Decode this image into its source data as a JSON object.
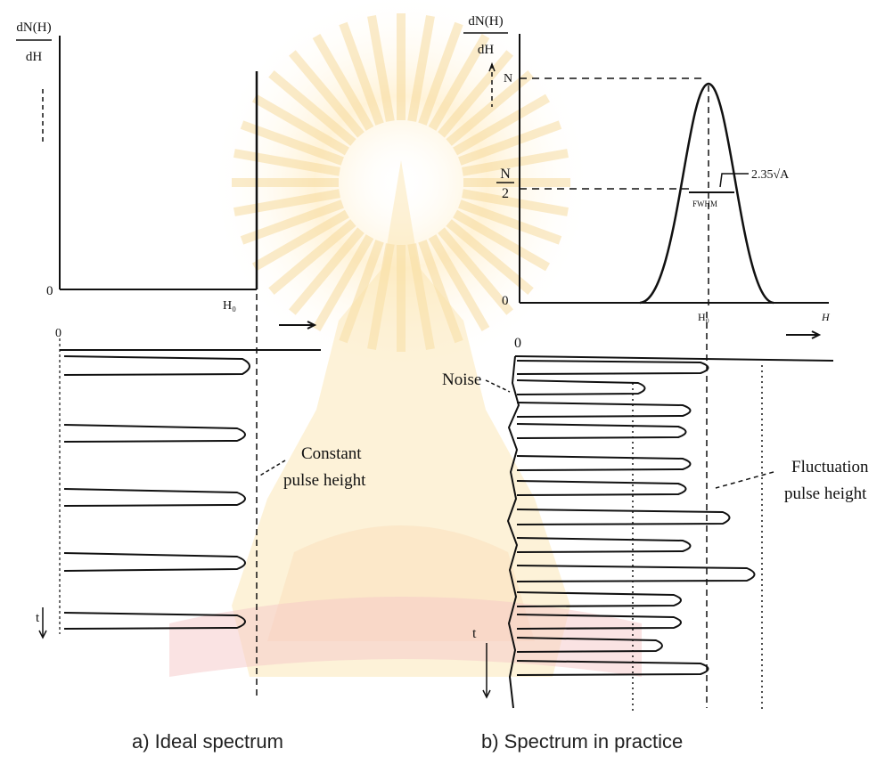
{
  "panel_a": {
    "y_axis_label_top": "dN(H)",
    "y_axis_label_bottom": "dH",
    "origin_label": "0",
    "h0_label": "H₀",
    "time_origin_label": "0",
    "time_label": "t",
    "annotation": [
      "Constant",
      "pulse height"
    ],
    "caption": "a) Ideal spectrum"
  },
  "panel_b": {
    "y_axis_label_top": "dN(H)",
    "y_axis_label_bottom": "dH",
    "n_label": "N",
    "n_half_top": "N",
    "n_half_bottom": "2",
    "origin_label": "0",
    "h0_label": "H₀",
    "h_axis_label": "H",
    "width_label": "2.35√A",
    "fwhm_label": "FWHM",
    "time_origin_label": "0",
    "time_label": "t",
    "noise_label": "Noise",
    "annotation": [
      "Fluctuation",
      "pulse height"
    ],
    "caption": "b) Spectrum in practice"
  },
  "colors": {
    "ink": "#111111",
    "watermark": "#f3c35a",
    "watermark_red": "#e88a8a"
  },
  "icons": {
    "arrow": "arrow-right-icon",
    "watermark": "university-emblem-icon"
  }
}
